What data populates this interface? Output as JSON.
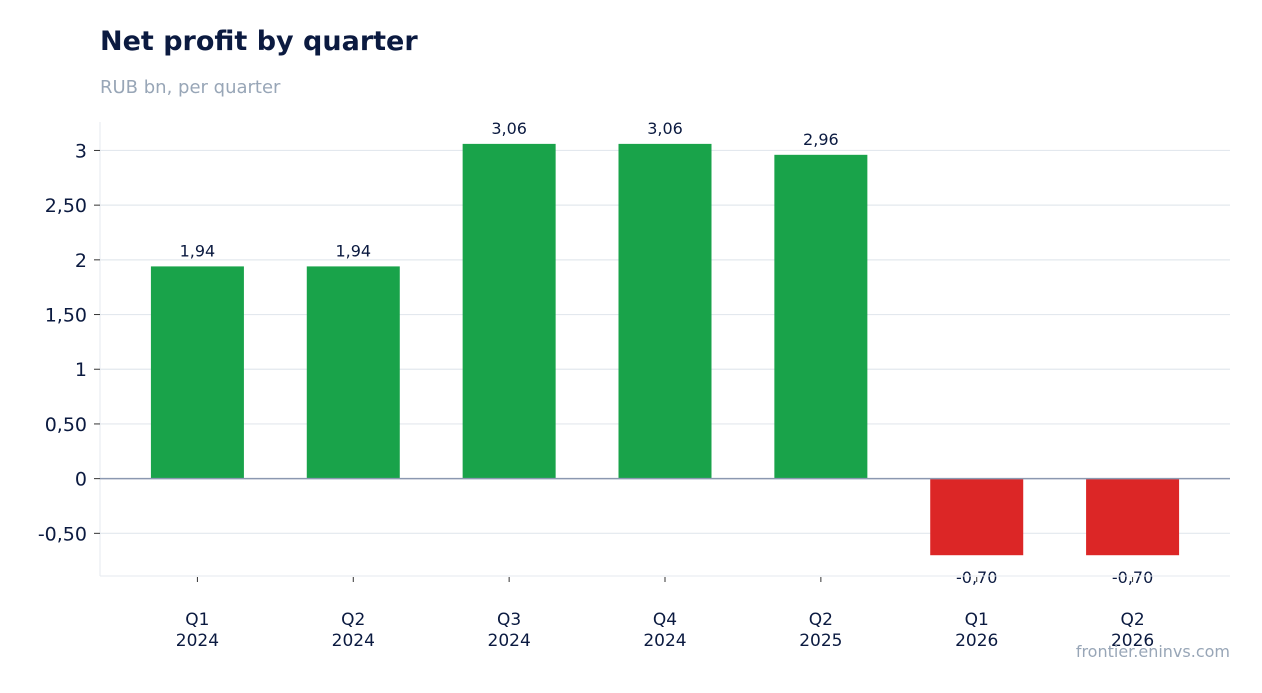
{
  "header": {
    "title": "Net profit by quarter",
    "subtitle": "RUB bn, per quarter"
  },
  "footer": {
    "source": "frontier.eninvs.com"
  },
  "colors": {
    "positive": "#19a34a",
    "negative": "#dc2626",
    "grid": "#e3e8ee",
    "zero_line": "#8b98b0",
    "axis_text": "#0b1a40"
  },
  "chart_data": {
    "type": "bar",
    "categories": [
      [
        "Q1",
        "2024"
      ],
      [
        "Q2",
        "2024"
      ],
      [
        "Q3",
        "2024"
      ],
      [
        "Q4",
        "2024"
      ],
      [
        "Q2",
        "2025"
      ],
      [
        "Q1",
        "2026"
      ],
      [
        "Q2",
        "2026"
      ]
    ],
    "values": [
      1.94,
      1.94,
      3.06,
      3.06,
      2.96,
      -0.7,
      -0.7
    ],
    "value_labels": [
      "1,94",
      "1,94",
      "3,06",
      "3,06",
      "2,96",
      "-0,70",
      "-0,70"
    ],
    "y_ticks": [
      {
        "value": -0.5,
        "label": "-0,50"
      },
      {
        "value": 0,
        "label": "0"
      },
      {
        "value": 0.5,
        "label": "0,50"
      },
      {
        "value": 1,
        "label": "1"
      },
      {
        "value": 1.5,
        "label": "1,50"
      },
      {
        "value": 2,
        "label": "2"
      },
      {
        "value": 2.5,
        "label": "2,50"
      },
      {
        "value": 3,
        "label": "3"
      }
    ],
    "ylim": [
      -0.89,
      3.26
    ],
    "grid": true,
    "legend": "none"
  }
}
